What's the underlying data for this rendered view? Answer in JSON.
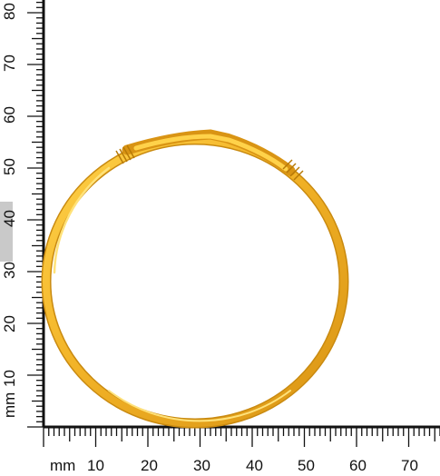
{
  "left_ruler": {
    "unit": "mm",
    "labels": [
      "10",
      "20",
      "30",
      "40",
      "50",
      "60",
      "70",
      "80"
    ],
    "highlight_label": "40"
  },
  "bottom_ruler": {
    "unit": "mm",
    "labels": [
      "10",
      "20",
      "30",
      "40",
      "50",
      "60",
      "70"
    ]
  },
  "colors": {
    "ruler_ink": "#111111",
    "highlight_band": "#c9c9c9",
    "gold_mid": "#f0b72a",
    "gold_dark": "#c98a10",
    "gold_light": "#ffe27a"
  },
  "subject": {
    "icon": "gold-bangle-icon"
  }
}
